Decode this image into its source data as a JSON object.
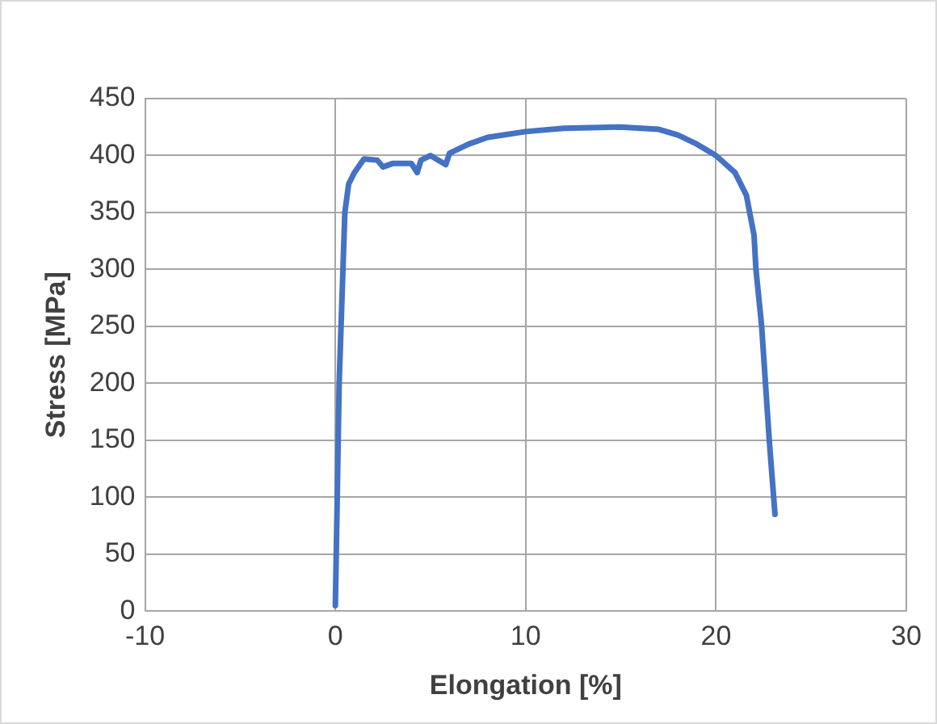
{
  "chart_data": {
    "type": "line",
    "xlabel": "Elongation [%]",
    "ylabel": "Stress [MPa]",
    "xlim": [
      -10,
      30
    ],
    "xticks": [
      -10,
      0,
      10,
      20,
      30
    ],
    "ylim": [
      0,
      450
    ],
    "yticks": [
      0,
      50,
      100,
      150,
      200,
      250,
      300,
      350,
      400,
      450
    ],
    "grid": true,
    "marker": "none",
    "line_style": "solid",
    "series": [
      {
        "color": "#4472c4",
        "x": [
          0,
          0.1,
          0.2,
          0.4,
          0.5,
          0.7,
          1,
          1.5,
          2.2,
          2.5,
          3,
          4,
          4.3,
          4.5,
          5,
          5.8,
          6,
          7,
          8,
          10,
          12,
          15,
          17,
          18,
          19,
          20,
          21,
          21.6,
          22,
          22.1,
          22.4,
          22.6,
          22.8,
          23.1
        ],
        "values": [
          5,
          100,
          200,
          300,
          350,
          375,
          385,
          397,
          396,
          390,
          393,
          393,
          385,
          396,
          400,
          392,
          402,
          410,
          416,
          421,
          424,
          425,
          423,
          418,
          410,
          400,
          385,
          365,
          330,
          300,
          250,
          200,
          150,
          85
        ]
      }
    ]
  }
}
